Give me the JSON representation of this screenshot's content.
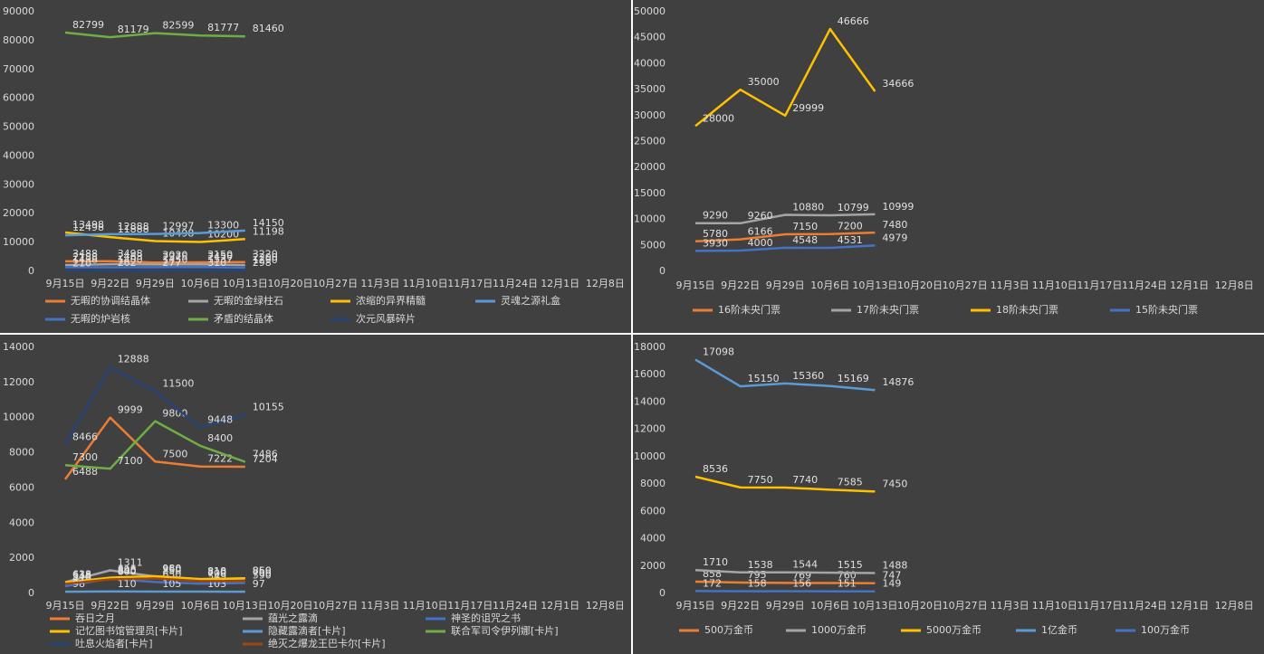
{
  "chart_data": [
    {
      "type": "line",
      "categories": [
        "9月15日",
        "9月22日",
        "9月29日",
        "10月6日",
        "10月13日",
        "10月20日",
        "10月27日",
        "11月3日",
        "11月10日",
        "11月17日",
        "11月24日",
        "12月1日",
        "12月8日"
      ],
      "ylim": [
        0,
        90000
      ],
      "yticks": [
        0,
        10000,
        20000,
        30000,
        40000,
        50000,
        60000,
        70000,
        80000,
        90000
      ],
      "grid": false,
      "series": [
        {
          "name": "无暇的协调结晶体",
          "color": "#ed7d31",
          "values": [
            3488,
            3498,
            3030,
            3150,
            3220,
            null,
            null,
            null,
            null,
            null,
            null,
            null,
            null
          ]
        },
        {
          "name": "无暇的金绿柱石",
          "color": "#a5a5a5",
          "values": [
            2188,
            2463,
            2375,
            2450,
            2200,
            null,
            null,
            null,
            null,
            null,
            null,
            null,
            null
          ]
        },
        {
          "name": "浓缩的异界精髓",
          "color": "#ffc000",
          "values": [
            13498,
            11888,
            10498,
            10200,
            11198,
            null,
            null,
            null,
            null,
            null,
            null,
            null,
            null
          ]
        },
        {
          "name": "灵魂之源礼盒",
          "color": "#5b9bd5",
          "values": [
            12498,
            12888,
            12997,
            13300,
            14150,
            null,
            null,
            null,
            null,
            null,
            null,
            null,
            null
          ]
        },
        {
          "name": "无暇的炉岩核",
          "color": "#4472c4",
          "values": [
            1438,
            1400,
            1450,
            1537,
            1290,
            null,
            null,
            null,
            null,
            null,
            null,
            null,
            null
          ]
        },
        {
          "name": "矛盾的结晶体",
          "color": "#70ad47",
          "values": [
            82799,
            81179,
            82599,
            81777,
            81460,
            null,
            null,
            null,
            null,
            null,
            null,
            null,
            null
          ]
        },
        {
          "name": "次元风暴碎片",
          "color": "#264478",
          "values": [
            210,
            262,
            277,
            310,
            298,
            null,
            null,
            null,
            null,
            null,
            null,
            null,
            null
          ]
        }
      ]
    },
    {
      "type": "line",
      "categories": [
        "9月15日",
        "9月22日",
        "9月29日",
        "10月6日",
        "10月13日",
        "10月20日",
        "10月27日",
        "11月3日",
        "11月10日",
        "11月17日",
        "11月24日",
        "12月1日",
        "12月8日"
      ],
      "ylim": [
        0,
        50000
      ],
      "yticks": [
        0,
        5000,
        10000,
        15000,
        20000,
        25000,
        30000,
        35000,
        40000,
        45000,
        50000
      ],
      "grid": false,
      "series": [
        {
          "name": "16阶未央门票",
          "color": "#ed7d31",
          "values": [
            5780,
            6166,
            7150,
            7200,
            7480,
            null,
            null,
            null,
            null,
            null,
            null,
            null,
            null
          ]
        },
        {
          "name": "17阶未央门票",
          "color": "#a5a5a5",
          "values": [
            9290,
            9260,
            10880,
            10799,
            10999,
            null,
            null,
            null,
            null,
            null,
            null,
            null,
            null
          ]
        },
        {
          "name": "18阶未央门票",
          "color": "#ffc000",
          "values": [
            28000,
            35000,
            29999,
            46666,
            34666,
            null,
            null,
            null,
            null,
            null,
            null,
            null,
            null
          ]
        },
        {
          "name": "15阶未央门票",
          "color": "#4472c4",
          "values": [
            3930,
            4000,
            4548,
            4531,
            4979,
            null,
            null,
            null,
            null,
            null,
            null,
            null,
            null
          ]
        }
      ]
    },
    {
      "type": "line",
      "categories": [
        "9月15日",
        "9月22日",
        "9月29日",
        "10月6日",
        "10月13日",
        "10月20日",
        "10月27日",
        "11月3日",
        "11月10日",
        "11月17日",
        "11月24日",
        "12月1日",
        "12月8日"
      ],
      "ylim": [
        0,
        14000
      ],
      "yticks": [
        0,
        2000,
        4000,
        6000,
        8000,
        10000,
        12000,
        14000
      ],
      "grid": false,
      "series": [
        {
          "name": "吞日之月",
          "color": "#ed7d31",
          "values": [
            6488,
            9999,
            7500,
            7222,
            7204,
            null,
            null,
            null,
            null,
            null,
            null,
            null,
            null
          ]
        },
        {
          "name": "蕴光之露滴",
          "color": "#a5a5a5",
          "values": [
            638,
            1311,
            960,
            818,
            850,
            null,
            null,
            null,
            null,
            null,
            null,
            null,
            null
          ]
        },
        {
          "name": "神圣的诅咒之书",
          "color": "#4472c4",
          "values": [
            410,
            840,
            650,
            549,
            590,
            null,
            null,
            null,
            null,
            null,
            null,
            null,
            null
          ]
        },
        {
          "name": "记忆图书馆管理员[卡片]",
          "color": "#ffc000",
          "values": [
            618,
            898,
            980,
            810,
            860,
            null,
            null,
            null,
            null,
            null,
            null,
            null,
            null
          ]
        },
        {
          "name": "隐藏露滴者[卡片]",
          "color": "#5b9bd5",
          "values": [
            98,
            110,
            105,
            103,
            97,
            null,
            null,
            null,
            null,
            null,
            null,
            null,
            null
          ]
        },
        {
          "name": "联合军司令伊列娜[卡片]",
          "color": "#70ad47",
          "values": [
            7300,
            7100,
            9800,
            8400,
            7486,
            null,
            null,
            null,
            null,
            null,
            null,
            null,
            null
          ]
        },
        {
          "name": "吐息火焰者[卡片]",
          "color": "#264478",
          "values": [
            8466,
            12888,
            11500,
            9448,
            10155,
            null,
            null,
            null,
            null,
            null,
            null,
            null,
            null
          ]
        },
        {
          "name": "绝灭之爆龙王巴卡尔[卡片]",
          "color": "#9e480e",
          "values": [
            540,
            800,
            850,
            700,
            700,
            null,
            null,
            null,
            null,
            null,
            null,
            null,
            null
          ]
        }
      ]
    },
    {
      "type": "line",
      "categories": [
        "9月15日",
        "9月22日",
        "9月29日",
        "10月6日",
        "10月13日",
        "10月20日",
        "10月27日",
        "11月3日",
        "11月10日",
        "11月17日",
        "11月24日",
        "12月1日",
        "12月8日"
      ],
      "ylim": [
        0,
        18000
      ],
      "yticks": [
        0,
        2000,
        4000,
        6000,
        8000,
        10000,
        12000,
        14000,
        16000,
        18000
      ],
      "grid": false,
      "series": [
        {
          "name": "500万金币",
          "color": "#ed7d31",
          "values": [
            858,
            795,
            769,
            760,
            747,
            null,
            null,
            null,
            null,
            null,
            null,
            null,
            null
          ]
        },
        {
          "name": "1000万金币",
          "color": "#a5a5a5",
          "values": [
            1710,
            1538,
            1544,
            1515,
            1488,
            null,
            null,
            null,
            null,
            null,
            null,
            null,
            null
          ]
        },
        {
          "name": "5000万金币",
          "color": "#ffc000",
          "values": [
            8536,
            7750,
            7740,
            7585,
            7450,
            null,
            null,
            null,
            null,
            null,
            null,
            null,
            null
          ]
        },
        {
          "name": "1亿金币",
          "color": "#5b9bd5",
          "values": [
            17098,
            15150,
            15360,
            15169,
            14876,
            null,
            null,
            null,
            null,
            null,
            null,
            null,
            null
          ]
        },
        {
          "name": "100万金币",
          "color": "#4472c4",
          "values": [
            172,
            158,
            156,
            151,
            149,
            null,
            null,
            null,
            null,
            null,
            null,
            null,
            null
          ]
        }
      ]
    }
  ]
}
